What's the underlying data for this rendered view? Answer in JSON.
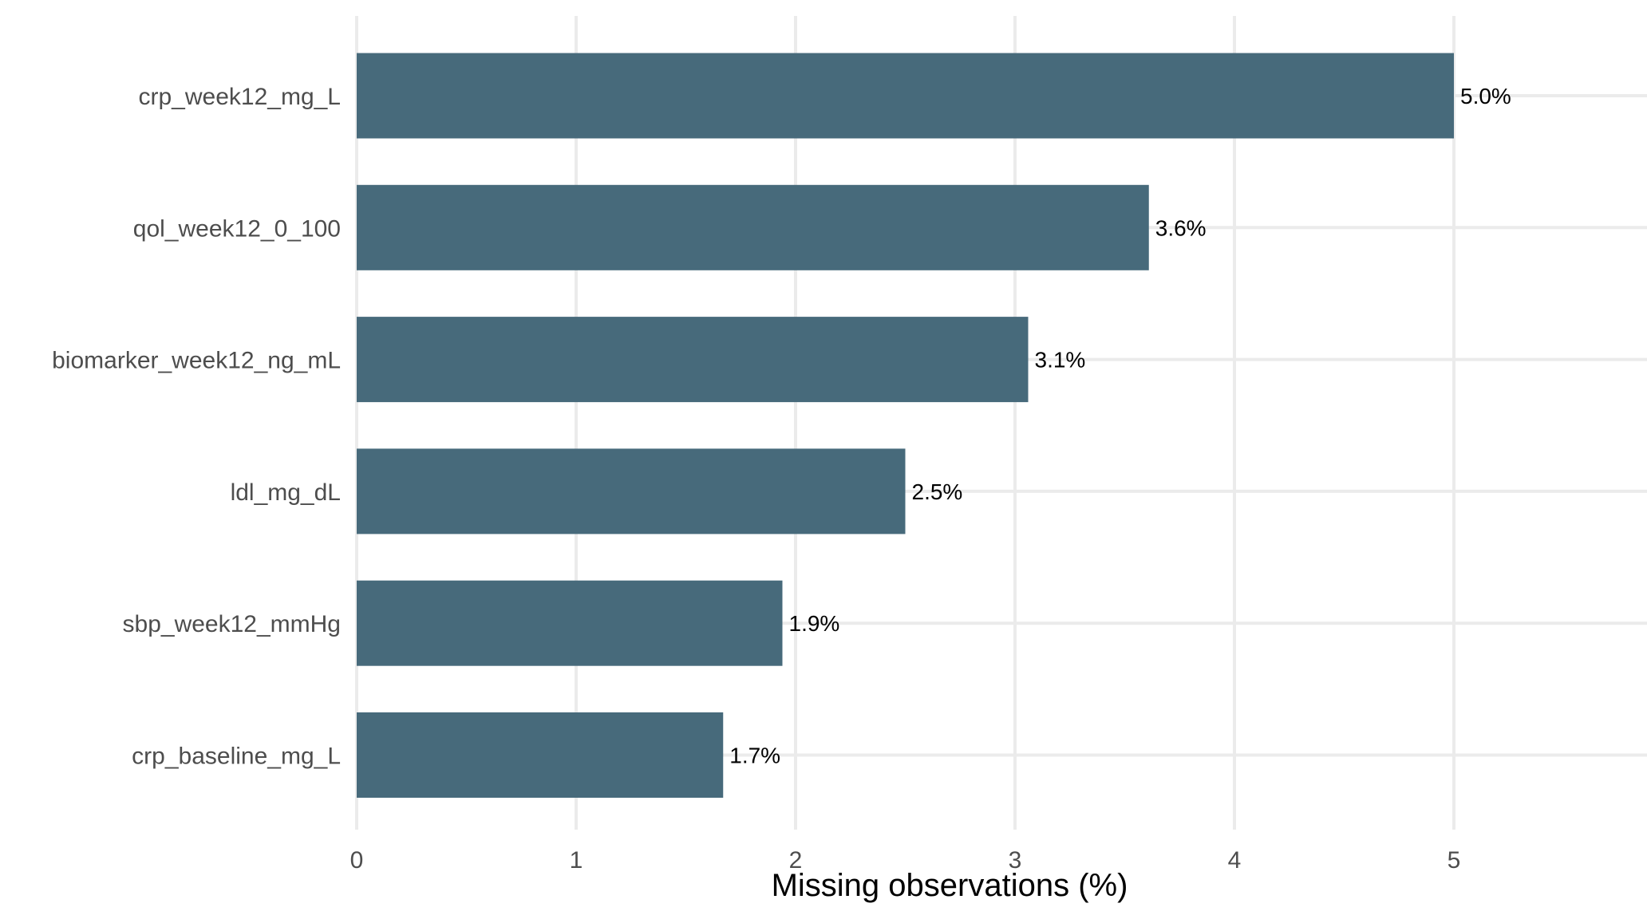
{
  "chart_data": {
    "type": "bar",
    "orientation": "horizontal",
    "categories": [
      "crp_week12_mg_L",
      "qol_week12_0_100",
      "biomarker_week12_ng_mL",
      "ldl_mg_dL",
      "sbp_week12_mmHg",
      "crp_baseline_mg_L"
    ],
    "values": [
      5.0,
      3.61,
      3.06,
      2.5,
      1.94,
      1.67
    ],
    "data_labels": [
      "5.0%",
      "3.6%",
      "3.1%",
      "2.5%",
      "1.9%",
      "1.7%"
    ],
    "xlabel": "Missing observations (%)",
    "ylabel": "",
    "xlim": [
      0,
      5.9
    ],
    "xticks": [
      0,
      1,
      2,
      3,
      4,
      5
    ],
    "xtick_labels": [
      "0",
      "1",
      "2",
      "3",
      "4",
      "5"
    ],
    "grid": true,
    "legend": "none",
    "bar_color": "#476a7b",
    "grid_color": "#ebebeb"
  }
}
